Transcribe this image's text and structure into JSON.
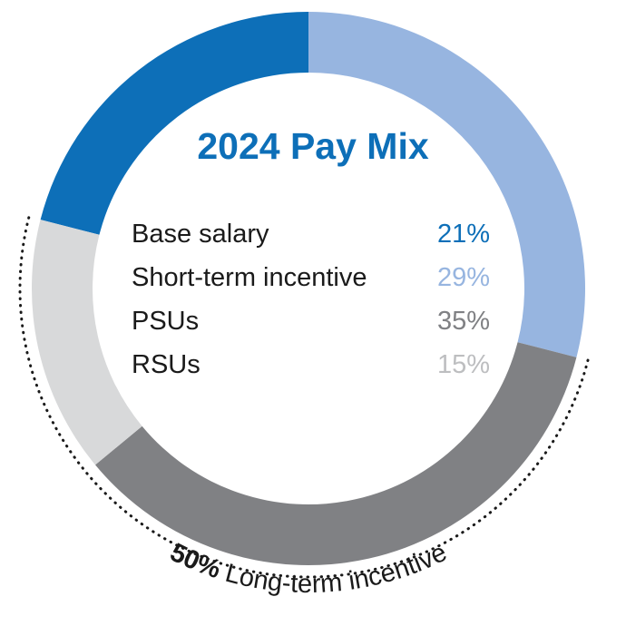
{
  "chart_data": {
    "type": "pie",
    "title": "2024 Pay Mix",
    "categories": [
      "Base salary",
      "Short-term incentive",
      "PSUs",
      "RSUs"
    ],
    "values": [
      21,
      29,
      35,
      15
    ],
    "value_labels": [
      "21%",
      "29%",
      "35%",
      "15%"
    ],
    "colors": [
      "#0d6fb8",
      "#97b5e0",
      "#808184",
      "#d8d9da"
    ],
    "annotation": {
      "value": "50%",
      "text": "Long-term incentive",
      "spans": [
        "PSUs",
        "RSUs"
      ]
    },
    "legend_placement": "center"
  }
}
